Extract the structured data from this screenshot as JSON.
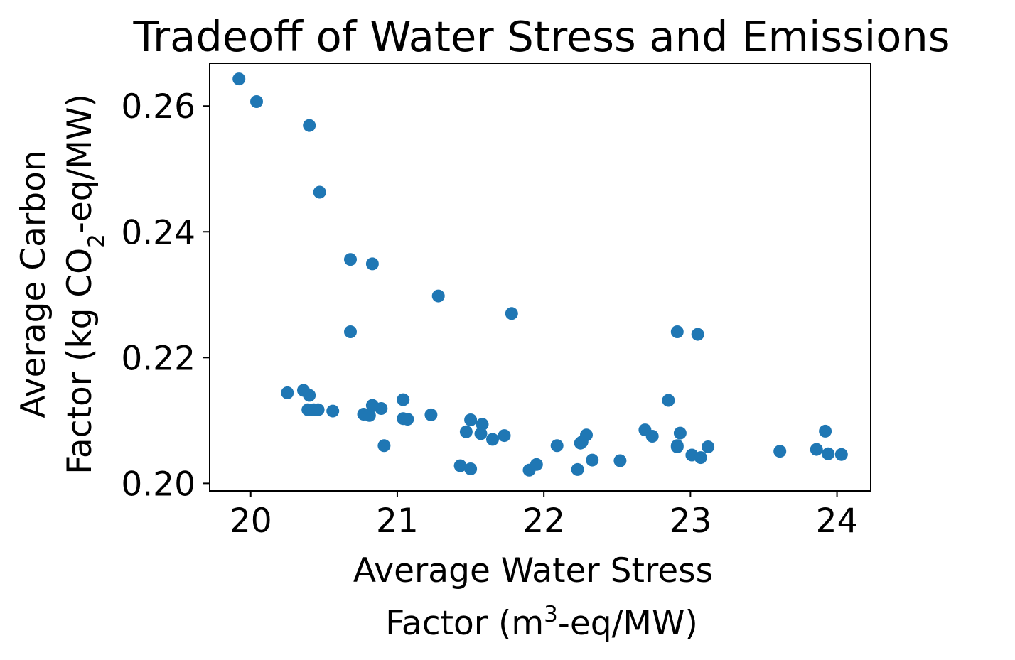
{
  "chart_data": {
    "type": "scatter",
    "title": "Tradeoff of Water Stress and Emissions",
    "xlabel": {
      "line1": "Average Water Stress",
      "line2_pre": "Factor (m",
      "line2_sup": "3",
      "line2_post": "-eq/MW)"
    },
    "ylabel": {
      "line1": "Average Carbon",
      "line2_pre": "Factor (kg CO",
      "line2_sub": "2",
      "line2_post": "-eq/MW)"
    },
    "xlim": [
      19.72,
      24.23
    ],
    "ylim": [
      0.1988,
      0.2668
    ],
    "xticks": [
      20,
      21,
      22,
      23,
      24
    ],
    "xtick_labels": [
      "20",
      "21",
      "22",
      "23",
      "24"
    ],
    "yticks": [
      0.2,
      0.22,
      0.24,
      0.26
    ],
    "ytick_labels": [
      "0.20",
      "0.22",
      "0.24",
      "0.26"
    ],
    "grid": false,
    "legend": "none",
    "color": "#1f77b4",
    "points": [
      [
        19.92,
        0.2643
      ],
      [
        20.04,
        0.2607
      ],
      [
        20.4,
        0.2569
      ],
      [
        20.47,
        0.2463
      ],
      [
        20.68,
        0.2356
      ],
      [
        20.83,
        0.2349
      ],
      [
        21.28,
        0.2298
      ],
      [
        21.78,
        0.227
      ],
      [
        20.68,
        0.2241
      ],
      [
        22.91,
        0.2241
      ],
      [
        23.05,
        0.2237
      ],
      [
        20.25,
        0.2144
      ],
      [
        20.36,
        0.2148
      ],
      [
        20.4,
        0.214
      ],
      [
        20.39,
        0.2117
      ],
      [
        20.43,
        0.2117
      ],
      [
        20.46,
        0.2117
      ],
      [
        20.56,
        0.2115
      ],
      [
        20.77,
        0.211
      ],
      [
        20.81,
        0.2108
      ],
      [
        20.83,
        0.2124
      ],
      [
        20.89,
        0.2119
      ],
      [
        20.91,
        0.206
      ],
      [
        21.04,
        0.2133
      ],
      [
        21.04,
        0.2103
      ],
      [
        21.07,
        0.2102
      ],
      [
        21.23,
        0.2109
      ],
      [
        21.43,
        0.2028
      ],
      [
        21.47,
        0.2082
      ],
      [
        21.5,
        0.2023
      ],
      [
        21.5,
        0.2101
      ],
      [
        21.58,
        0.2094
      ],
      [
        21.57,
        0.2079
      ],
      [
        21.65,
        0.207
      ],
      [
        21.73,
        0.2076
      ],
      [
        21.9,
        0.2021
      ],
      [
        21.95,
        0.203
      ],
      [
        22.09,
        0.206
      ],
      [
        22.23,
        0.2022
      ],
      [
        22.25,
        0.2064
      ],
      [
        22.26,
        0.2066
      ],
      [
        22.29,
        0.2077
      ],
      [
        22.33,
        0.2037
      ],
      [
        22.52,
        0.2036
      ],
      [
        22.69,
        0.2085
      ],
      [
        22.74,
        0.2075
      ],
      [
        22.85,
        0.2132
      ],
      [
        22.91,
        0.2058
      ],
      [
        22.91,
        0.206
      ],
      [
        22.93,
        0.208
      ],
      [
        23.01,
        0.2045
      ],
      [
        23.07,
        0.2041
      ],
      [
        23.12,
        0.2058
      ],
      [
        23.61,
        0.2051
      ],
      [
        23.86,
        0.2054
      ],
      [
        23.92,
        0.2083
      ],
      [
        23.94,
        0.2047
      ],
      [
        24.03,
        0.2046
      ]
    ]
  }
}
